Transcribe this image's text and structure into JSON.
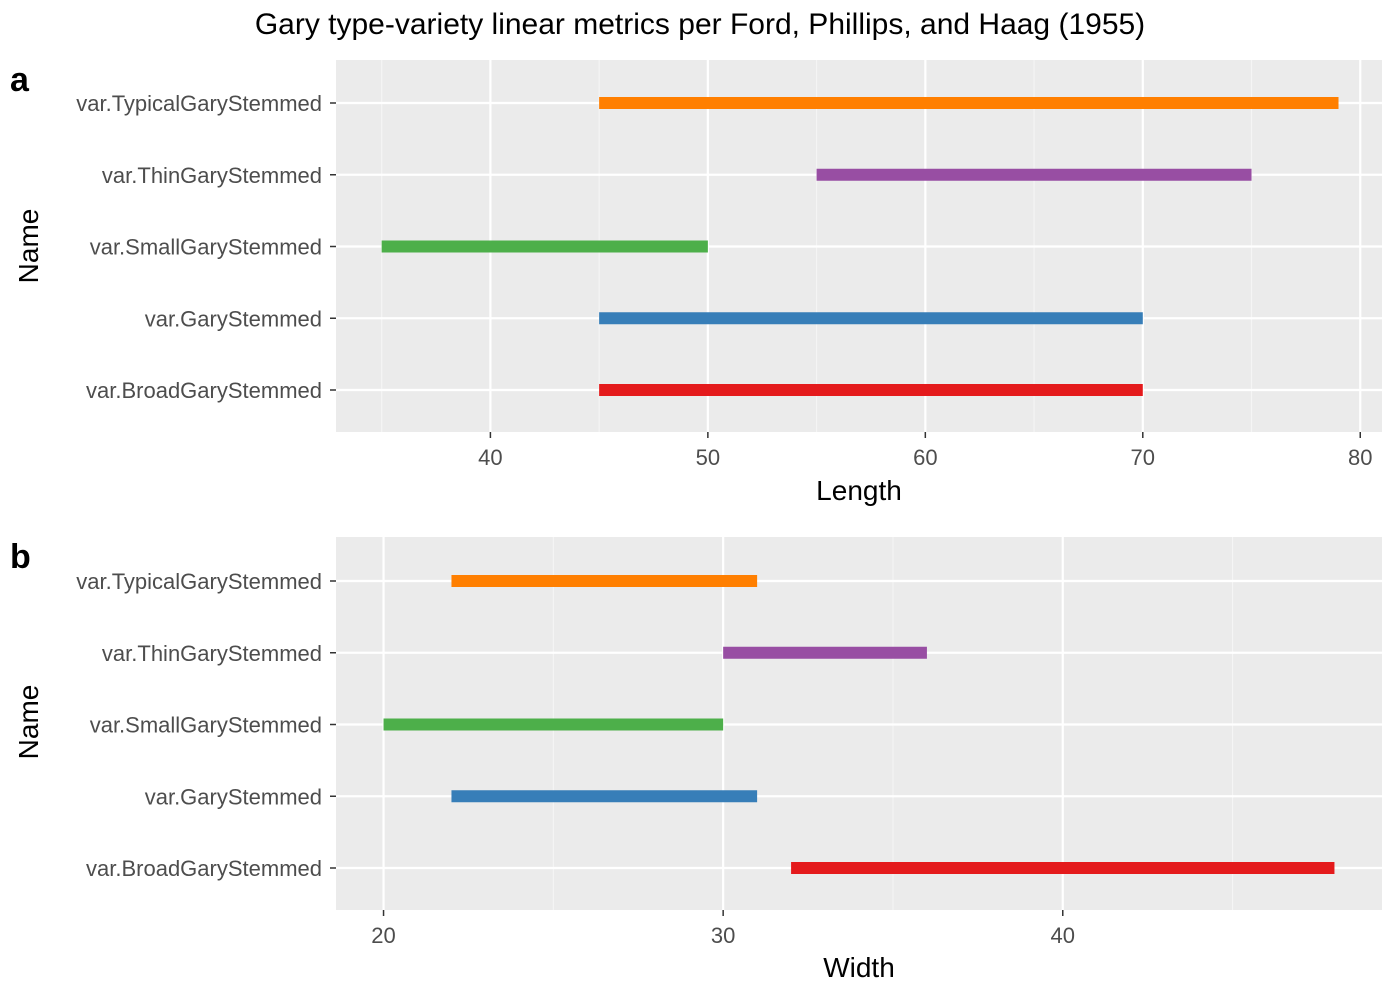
{
  "title": "Gary type-variety linear metrics per Ford, Phillips, and Haag (1955)",
  "colors": {
    "panel_bg": "#EBEBEB",
    "grid_major": "#FFFFFF",
    "grid_minor": "#F5F5F5",
    "tick": "#333333"
  },
  "chart_data": [
    {
      "type": "bar",
      "subtype": "range",
      "panel_tag": "a",
      "xlabel": "Length",
      "ylabel": "Name",
      "xlim": [
        32.9,
        81.0
      ],
      "x_ticks": [
        40,
        50,
        60,
        70,
        80
      ],
      "x_tick_labels": [
        "40",
        "50",
        "60",
        "70",
        "80"
      ],
      "grid": true,
      "legend": "none",
      "categories": [
        "var.BroadGaryStemmed",
        "var.GaryStemmed",
        "var.SmallGaryStemmed",
        "var.ThinGaryStemmed",
        "var.TypicalGaryStemmed"
      ],
      "series": [
        {
          "category": "var.BroadGaryStemmed",
          "min": 45,
          "max": 70,
          "color": "#E41A1C"
        },
        {
          "category": "var.GaryStemmed",
          "min": 45,
          "max": 70,
          "color": "#377EB8"
        },
        {
          "category": "var.SmallGaryStemmed",
          "min": 35,
          "max": 50,
          "color": "#4DAF4A"
        },
        {
          "category": "var.ThinGaryStemmed",
          "min": 55,
          "max": 75,
          "color": "#984EA3"
        },
        {
          "category": "var.TypicalGaryStemmed",
          "min": 45,
          "max": 79,
          "color": "#FF7F00"
        }
      ]
    },
    {
      "type": "bar",
      "subtype": "range",
      "panel_tag": "b",
      "xlabel": "Width",
      "ylabel": "Name",
      "xlim": [
        18.6,
        49.4
      ],
      "x_ticks": [
        20,
        30,
        40
      ],
      "x_tick_labels": [
        "20",
        "30",
        "40"
      ],
      "grid": true,
      "legend": "none",
      "categories": [
        "var.BroadGaryStemmed",
        "var.GaryStemmed",
        "var.SmallGaryStemmed",
        "var.ThinGaryStemmed",
        "var.TypicalGaryStemmed"
      ],
      "series": [
        {
          "category": "var.BroadGaryStemmed",
          "min": 32,
          "max": 48,
          "color": "#E41A1C"
        },
        {
          "category": "var.GaryStemmed",
          "min": 22,
          "max": 31,
          "color": "#377EB8"
        },
        {
          "category": "var.SmallGaryStemmed",
          "min": 20,
          "max": 30,
          "color": "#4DAF4A"
        },
        {
          "category": "var.ThinGaryStemmed",
          "min": 30,
          "max": 36,
          "color": "#984EA3"
        },
        {
          "category": "var.TypicalGaryStemmed",
          "min": 22,
          "max": 31,
          "color": "#FF7F00"
        }
      ]
    }
  ]
}
